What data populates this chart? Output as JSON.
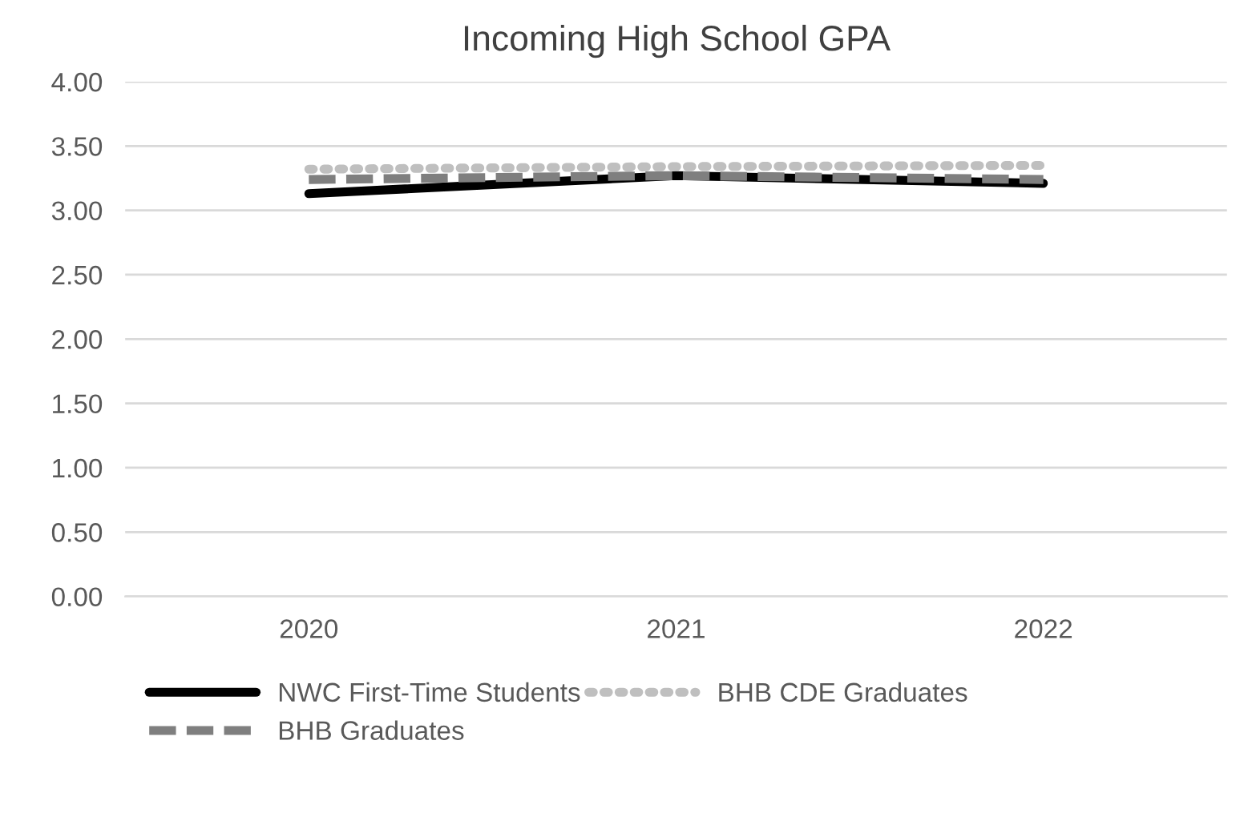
{
  "chart_data": {
    "type": "line",
    "title": "Incoming High School GPA",
    "categories": [
      "2020",
      "2021",
      "2022"
    ],
    "series": [
      {
        "name": "NWC First-Time Students",
        "color": "#000000",
        "values": [
          3.13,
          3.27,
          3.21
        ],
        "line_style": "solid"
      },
      {
        "name": "BHB Graduates",
        "color": "#7f7f7f",
        "values": [
          3.24,
          3.27,
          3.24
        ],
        "line_style": "dashed"
      },
      {
        "name": "BHB CDE Graduates",
        "color": "#bfbfbf",
        "values": [
          3.32,
          3.34,
          3.35
        ],
        "line_style": "dotted"
      }
    ],
    "ylim": [
      0,
      4
    ],
    "yticks": [
      {
        "value": 0,
        "label": "0.00"
      },
      {
        "value": 0.5,
        "label": "0.50"
      },
      {
        "value": 1,
        "label": "1.00"
      },
      {
        "value": 1.5,
        "label": "1.50"
      },
      {
        "value": 2,
        "label": "2.00"
      },
      {
        "value": 2.5,
        "label": "2.50"
      },
      {
        "value": 3,
        "label": "3.00"
      },
      {
        "value": 3.5,
        "label": "3.50"
      },
      {
        "value": 4,
        "label": "4.00"
      }
    ],
    "grid": "y",
    "legend": "bottom",
    "marker": "none"
  }
}
